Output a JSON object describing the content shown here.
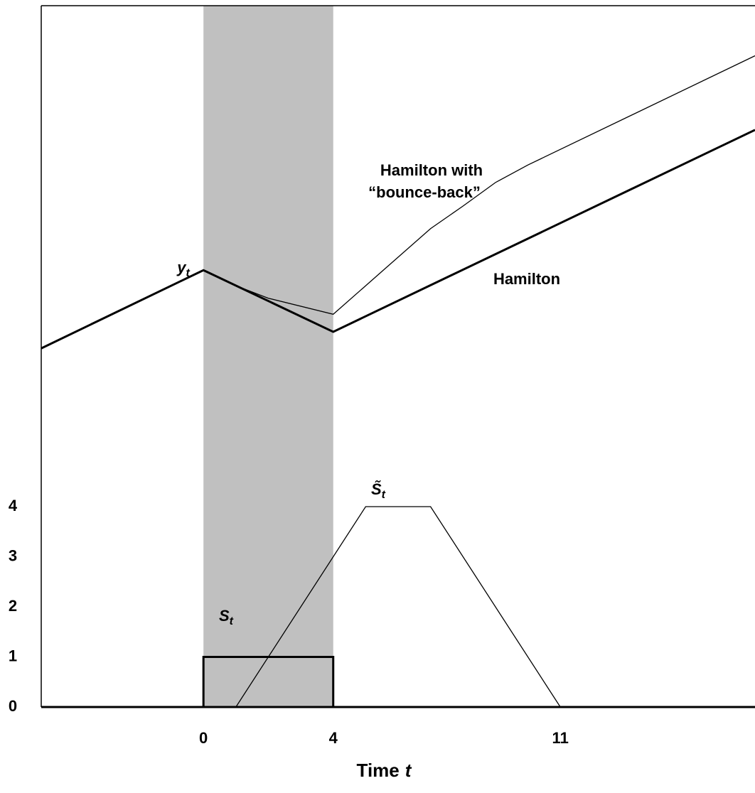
{
  "chart_data": {
    "type": "line",
    "x_label": {
      "text": "Time",
      "var": "t"
    },
    "xlim": [
      -5,
      17
    ],
    "xticks": [
      0,
      4,
      11
    ],
    "ylim": [
      0,
      14
    ],
    "yticks": [
      0,
      1,
      2,
      3,
      4
    ],
    "shade": [
      0,
      4
    ],
    "shade_color": "#c0c0c0",
    "series": [
      {
        "color": "#000000",
        "width": 3,
        "x": [
          -5,
          0,
          4,
          17
        ],
        "values": [
          7.16,
          8.72,
          7.49,
          11.52
        ]
      },
      {
        "color": "#000000",
        "width": 1.3,
        "x": [
          0,
          1,
          2,
          4,
          7,
          8,
          9,
          10,
          17
        ],
        "values": [
          8.72,
          8.41,
          8.16,
          7.84,
          9.55,
          10.0,
          10.47,
          10.82,
          13.0
        ]
      },
      {
        "color": "#000000",
        "width": 3,
        "x": [
          -5,
          0,
          0,
          4,
          4,
          17
        ],
        "values": [
          0,
          0,
          1,
          1,
          0,
          0
        ]
      },
      {
        "color": "#000000",
        "width": 1.3,
        "x": [
          1,
          5,
          7,
          11
        ],
        "values": [
          0,
          4,
          4,
          0
        ]
      }
    ],
    "annotations": [
      {
        "text": "y",
        "sub": "t"
      },
      {
        "text": "Hamilton with"
      },
      {
        "text": "“bounce-back”"
      },
      {
        "text": "Hamilton"
      },
      {
        "text": "S",
        "sub": "t"
      },
      {
        "text": "S̃",
        "sub": "t"
      }
    ]
  }
}
